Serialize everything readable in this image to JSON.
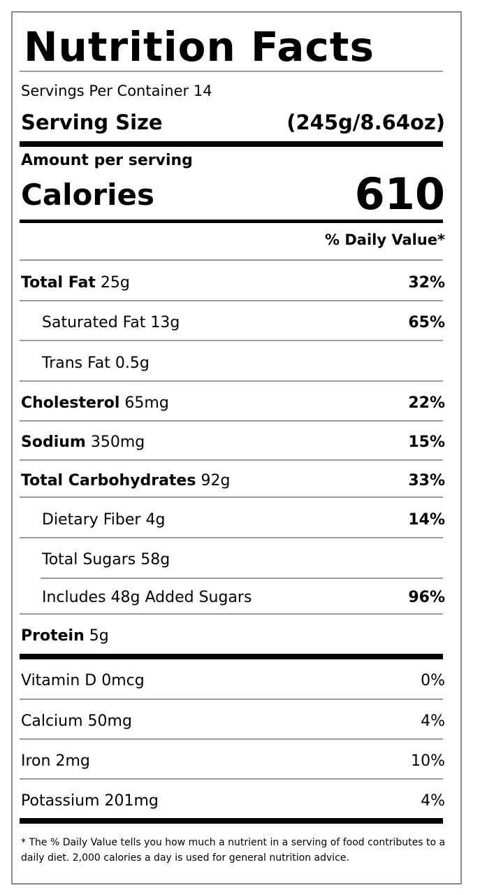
{
  "title": "Nutrition Facts",
  "servings_per_container": "Servings Per Container 14",
  "serving_size": {
    "label": "Serving Size",
    "value": "(245g/8.64oz)"
  },
  "amount_per_serving": "Amount per serving",
  "calories": {
    "label": "Calories",
    "value": "610"
  },
  "daily_value_header": "% Daily Value*",
  "nutrients": {
    "total_fat": {
      "label": "Total Fat",
      "amount": " 25g",
      "dv": "32%"
    },
    "saturated_fat": {
      "label": "Saturated Fat 13g",
      "dv": "65%"
    },
    "trans_fat": {
      "label": "Trans Fat 0.5g"
    },
    "cholesterol": {
      "label": "Cholesterol",
      "amount": " 65mg",
      "dv": "22%"
    },
    "sodium": {
      "label": "Sodium",
      "amount": " 350mg",
      "dv": "15%"
    },
    "total_carbohydrates": {
      "label": "Total Carbohydrates",
      "amount": " 92g",
      "dv": "33%"
    },
    "dietary_fiber": {
      "label": "Dietary Fiber 4g",
      "dv": "14%"
    },
    "total_sugars": {
      "label": "Total Sugars 58g"
    },
    "added_sugars": {
      "label": "Includes 48g Added Sugars",
      "dv": "96%"
    },
    "protein": {
      "label": "Protein",
      "amount": " 5g"
    }
  },
  "vitamins": {
    "vitamin_d": {
      "label": "Vitamin D 0mcg",
      "dv": "0%"
    },
    "calcium": {
      "label": "Calcium 50mg",
      "dv": "4%"
    },
    "iron": {
      "label": "Iron 2mg",
      "dv": "10%"
    },
    "potassium": {
      "label": "Potassium 201mg",
      "dv": "4%"
    }
  },
  "footnote": "* The % Daily Value tells you how much a nutrient in a serving of food contributes to a daily diet. 2,000 calories a day is used for general nutrition advice."
}
